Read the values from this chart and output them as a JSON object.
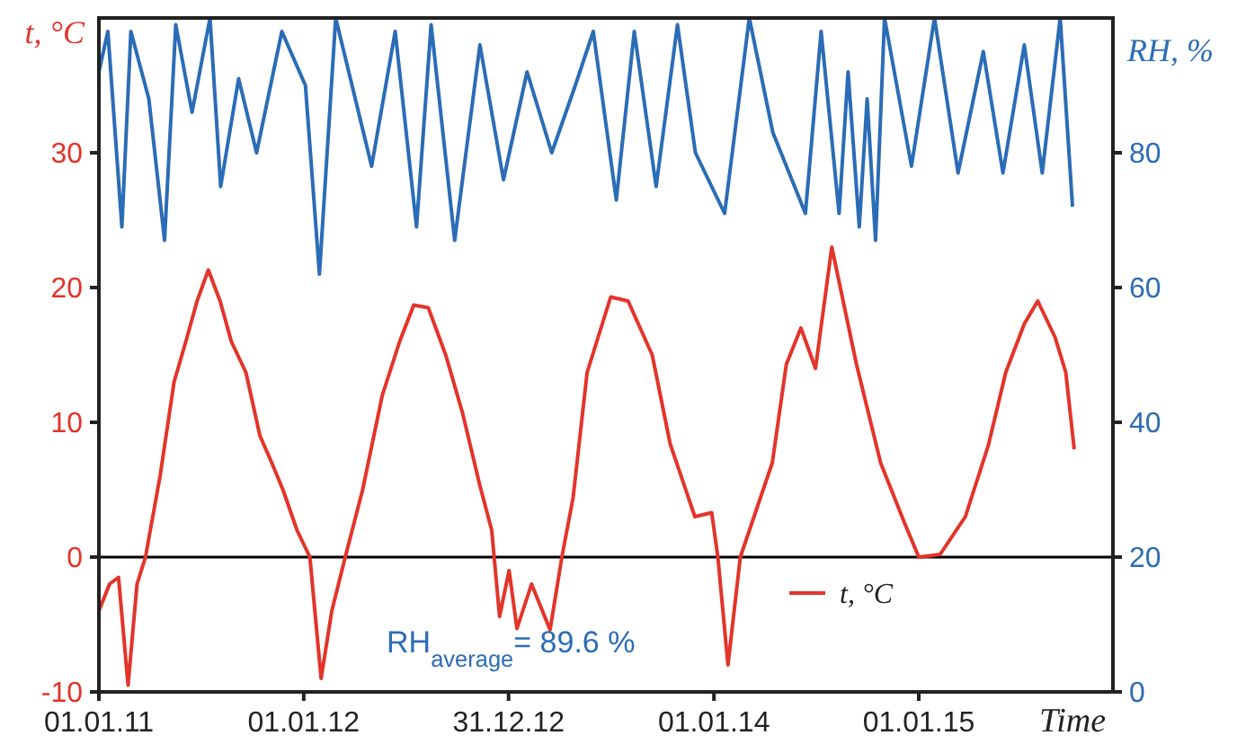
{
  "chart_data": {
    "type": "line",
    "xlabel": "Time",
    "ylabel": "t, °C",
    "y2label": "RH, %",
    "xlim": [
      "2011-01-01",
      "2015-12-13"
    ],
    "xticks": [
      {
        "value": "2011-01-01",
        "label": "01.01.11"
      },
      {
        "value": "2012-01-01",
        "label": "01.01.12"
      },
      {
        "value": "2012-12-31",
        "label": "31.12.12"
      },
      {
        "value": "2014-01-01",
        "label": "01.01.14"
      },
      {
        "value": "2015-01-01",
        "label": "01.01.15"
      }
    ],
    "ylim": [
      -10,
      40
    ],
    "yticks": [
      -10,
      0,
      10,
      20,
      30
    ],
    "y2lim": [
      0,
      100
    ],
    "y2ticks": [
      0,
      20,
      40,
      60,
      80
    ],
    "legend": "bottom right",
    "grid": false,
    "marker": "none",
    "line_style": "solid",
    "ref_lines": [
      {
        "axis": "y",
        "value": 0,
        "color": "#000000"
      }
    ],
    "annotations": [
      "RH$_{average}$= 89.6 %"
    ],
    "series": [
      {
        "name": "t, °C",
        "color": "#e3342a",
        "x": [
          "2011-01-01",
          "2011-01-20",
          "2011-02-05",
          "2011-02-22",
          "2011-03-10",
          "2011-03-25",
          "2011-04-20",
          "2011-05-15",
          "2011-06-05",
          "2011-06-25",
          "2011-07-15",
          "2011-08-05",
          "2011-08-25",
          "2011-09-20",
          "2011-10-15",
          "2011-11-05",
          "2011-11-25",
          "2011-12-20",
          "2012-01-12",
          "2012-02-01",
          "2012-02-20",
          "2012-03-15",
          "2012-04-15",
          "2012-05-20",
          "2012-06-20",
          "2012-07-15",
          "2012-08-10",
          "2012-09-10",
          "2012-10-10",
          "2012-11-10",
          "2012-12-01",
          "2012-12-15",
          "2013-01-01",
          "2013-01-15",
          "2013-02-10",
          "2013-03-15",
          "2013-04-05",
          "2013-04-25",
          "2013-05-20",
          "2013-07-01",
          "2013-08-01",
          "2013-09-13",
          "2013-10-15",
          "2013-11-28",
          "2013-12-28",
          "2014-01-08",
          "2014-01-26",
          "2014-02-17",
          "2014-04-15",
          "2014-05-10",
          "2014-06-05",
          "2014-07-01",
          "2014-07-30",
          "2014-09-12",
          "2014-10-25",
          "2014-12-05",
          "2015-01-01",
          "2015-02-08",
          "2015-03-25",
          "2015-05-05",
          "2015-06-05",
          "2015-07-08",
          "2015-08-01",
          "2015-09-01",
          "2015-09-20",
          "2015-10-05"
        ],
        "values": [
          -4,
          -2,
          -1.5,
          -9.5,
          -2,
          0,
          6,
          13,
          16,
          19,
          21.3,
          19,
          16,
          13.7,
          9,
          7,
          5,
          2,
          0,
          -9,
          -4,
          0,
          5,
          12,
          16,
          18.7,
          18.5,
          15,
          10.7,
          5.3,
          2,
          -4.4,
          -1,
          -5.3,
          -2,
          -5.4,
          0,
          4.4,
          13.7,
          19.3,
          19,
          15,
          8.4,
          3,
          3.3,
          0,
          -8,
          0,
          7,
          14.3,
          17,
          14,
          23,
          14.3,
          7,
          2.7,
          0,
          0.2,
          3,
          8.3,
          13.7,
          17.3,
          19,
          16.3,
          13.7,
          8
        ]
      },
      {
        "color": "#2b6cb6",
        "axis": "y2",
        "x": [
          "2011-01-01",
          "2011-01-17",
          "2011-02-11",
          "2011-02-27",
          "2011-03-31",
          "2011-04-28",
          "2011-05-18",
          "2011-06-16",
          "2011-07-18",
          "2011-08-06",
          "2011-09-07",
          "2011-10-09",
          "2011-11-23",
          "2012-01-04",
          "2012-01-29",
          "2012-02-27",
          "2012-03-30",
          "2012-05-01",
          "2012-06-12",
          "2012-07-20",
          "2012-08-15",
          "2012-09-26",
          "2012-11-10",
          "2012-12-22",
          "2013-02-02",
          "2013-03-18",
          "2013-04-29",
          "2013-05-31",
          "2013-07-11",
          "2013-08-12",
          "2013-09-20",
          "2013-10-28",
          "2013-11-29",
          "2014-01-20",
          "2014-03-05",
          "2014-04-16",
          "2014-06-13",
          "2014-07-11",
          "2014-08-12",
          "2014-08-28",
          "2014-09-17",
          "2014-10-01",
          "2014-10-16",
          "2014-11-01",
          "2014-12-19",
          "2015-01-29",
          "2015-03-12",
          "2015-04-26",
          "2015-05-31",
          "2015-07-08",
          "2015-08-09",
          "2015-09-10",
          "2015-10-02"
        ],
        "values": [
          92,
          98,
          69,
          98,
          88,
          67,
          99,
          86,
          100,
          75,
          91,
          80,
          98,
          90,
          62,
          100,
          89,
          78,
          98,
          69,
          99,
          67,
          96,
          76,
          92,
          80,
          90,
          98,
          73,
          98,
          75,
          99,
          80,
          71,
          100,
          83,
          71,
          98,
          71,
          92,
          69,
          88,
          67,
          100,
          78,
          100,
          77,
          95,
          77,
          96,
          77,
          100,
          72
        ]
      }
    ]
  }
}
